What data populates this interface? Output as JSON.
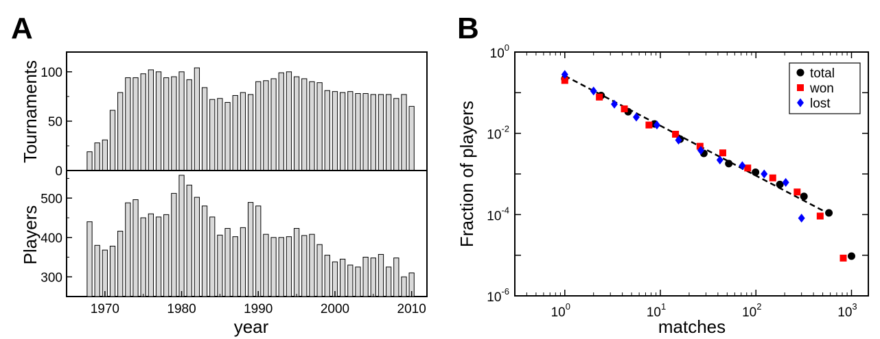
{
  "panels": {
    "a": {
      "letter": "A"
    },
    "b": {
      "letter": "B"
    }
  },
  "chart_data": [
    {
      "type": "bar",
      "panel": "A (top)",
      "ylabel": "Tournaments",
      "xlim": [
        1965,
        2012
      ],
      "ylim": [
        0,
        120
      ],
      "yticks": [
        "0",
        "50",
        "100"
      ],
      "bar_color": "#d9d9d9",
      "x": [
        1968,
        1969,
        1970,
        1971,
        1972,
        1973,
        1974,
        1975,
        1976,
        1977,
        1978,
        1979,
        1980,
        1981,
        1982,
        1983,
        1984,
        1985,
        1986,
        1987,
        1988,
        1989,
        1990,
        1991,
        1992,
        1993,
        1994,
        1995,
        1996,
        1997,
        1998,
        1999,
        2000,
        2001,
        2002,
        2003,
        2004,
        2005,
        2006,
        2007,
        2008,
        2009,
        2010
      ],
      "values": [
        19,
        28,
        31,
        61,
        79,
        94,
        94,
        98,
        102,
        100,
        94,
        95,
        100,
        92,
        104,
        84,
        72,
        73,
        69,
        76,
        79,
        77,
        90,
        91,
        93,
        99,
        100,
        95,
        93,
        90,
        89,
        81,
        80,
        79,
        80,
        78,
        78,
        77,
        77,
        77,
        73,
        77,
        65
      ]
    },
    {
      "type": "bar",
      "panel": "A (bottom)",
      "ylabel": "Players",
      "xlabel": "year",
      "xlim": [
        1965,
        2012
      ],
      "ylim": [
        250,
        570
      ],
      "yticks": [
        "300",
        "400",
        "500"
      ],
      "xticks": [
        "1970",
        "1980",
        "1990",
        "2000",
        "2010"
      ],
      "bar_color": "#d9d9d9",
      "x": [
        1968,
        1969,
        1970,
        1971,
        1972,
        1973,
        1974,
        1975,
        1976,
        1977,
        1978,
        1979,
        1980,
        1981,
        1982,
        1983,
        1984,
        1985,
        1986,
        1987,
        1988,
        1989,
        1990,
        1991,
        1992,
        1993,
        1994,
        1995,
        1996,
        1997,
        1998,
        1999,
        2000,
        2001,
        2002,
        2003,
        2004,
        2005,
        2006,
        2007,
        2008,
        2009,
        2010
      ],
      "values": [
        440,
        380,
        368,
        378,
        416,
        488,
        496,
        450,
        460,
        452,
        458,
        512,
        558,
        533,
        502,
        480,
        452,
        406,
        423,
        402,
        425,
        489,
        480,
        408,
        400,
        400,
        402,
        423,
        405,
        408,
        382,
        355,
        338,
        345,
        330,
        325,
        350,
        348,
        357,
        325,
        348,
        300,
        310
      ]
    },
    {
      "type": "scatter",
      "panel": "B",
      "xlabel": "matches",
      "ylabel": "Fraction of players",
      "xscale": "log",
      "yscale": "log",
      "xlim": [
        0.3,
        1500
      ],
      "ylim": [
        1e-06,
        1
      ],
      "xticks": [
        {
          "base": "10",
          "exp": "0"
        },
        {
          "base": "10",
          "exp": "1"
        },
        {
          "base": "10",
          "exp": "2"
        },
        {
          "base": "10",
          "exp": "3"
        }
      ],
      "yticks": [
        {
          "base": "10",
          "exp": "0"
        },
        {
          "base": "10",
          "exp": "-2"
        },
        {
          "base": "10",
          "exp": "-4"
        },
        {
          "base": "10",
          "exp": "-6"
        }
      ],
      "legend_position": "top-right",
      "series": [
        {
          "name": "total",
          "marker": "circle",
          "color": "#000000",
          "x": [
            1,
            2.4,
            4.6,
            8.7,
            16.1,
            28.5,
            52,
            99,
            178,
            318,
            580,
            1000
          ],
          "y": [
            0.22,
            0.085,
            0.034,
            0.017,
            0.0072,
            0.0032,
            0.0018,
            0.0011,
            0.00055,
            0.00028,
            0.00011,
            9.5e-06
          ]
        },
        {
          "name": "won",
          "marker": "square",
          "color": "#ff0000",
          "x": [
            1,
            2.3,
            4.2,
            7.6,
            14.4,
            26,
            45,
            82,
            150,
            270,
            470,
            820
          ],
          "y": [
            0.2,
            0.078,
            0.04,
            0.016,
            0.0095,
            0.0048,
            0.0033,
            0.0014,
            0.0008,
            0.00036,
            9.2e-05,
            8.5e-06
          ]
        },
        {
          "name": "lost",
          "marker": "diamond",
          "color": "#0000ff",
          "x": [
            1,
            2,
            3.3,
            5.6,
            9.2,
            15.5,
            26.5,
            42,
            72,
            122,
            205,
            300
          ],
          "y": [
            0.28,
            0.11,
            0.052,
            0.025,
            0.016,
            0.0068,
            0.0038,
            0.0022,
            0.0016,
            0.001,
            0.00062,
            8.2e-05
          ]
        }
      ],
      "fit_line": {
        "style": "dashed",
        "color": "#000000",
        "x": [
          1,
          580
        ],
        "y": [
          0.26,
          0.000105
        ]
      }
    }
  ]
}
